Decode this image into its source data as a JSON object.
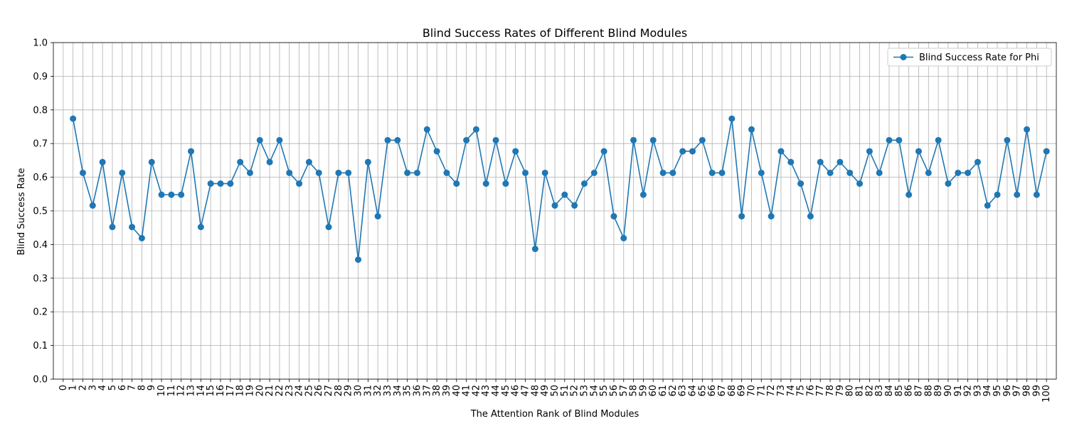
{
  "chart_data": {
    "type": "line",
    "title": "Blind Success Rates of Different Blind Modules",
    "xlabel": "The Attention Rank of Blind Modules",
    "ylabel": "Blind Success Rate",
    "xlim": [
      -1,
      101
    ],
    "ylim": [
      0.0,
      1.0
    ],
    "xticks": [
      0,
      1,
      2,
      3,
      4,
      5,
      6,
      7,
      8,
      9,
      10,
      11,
      12,
      13,
      14,
      15,
      16,
      17,
      18,
      19,
      20,
      21,
      22,
      23,
      24,
      25,
      26,
      27,
      28,
      29,
      30,
      31,
      32,
      33,
      34,
      35,
      36,
      37,
      38,
      39,
      40,
      41,
      42,
      43,
      44,
      45,
      46,
      47,
      48,
      49,
      50,
      51,
      52,
      53,
      54,
      55,
      56,
      57,
      58,
      59,
      60,
      61,
      62,
      63,
      64,
      65,
      66,
      67,
      68,
      69,
      70,
      71,
      72,
      73,
      74,
      75,
      76,
      77,
      78,
      79,
      80,
      81,
      82,
      83,
      84,
      85,
      86,
      87,
      88,
      89,
      90,
      91,
      92,
      93,
      94,
      95,
      96,
      97,
      98,
      99,
      100
    ],
    "yticks": [
      "0.0",
      "0.1",
      "0.2",
      "0.3",
      "0.4",
      "0.5",
      "0.6",
      "0.7",
      "0.8",
      "0.9",
      "1.0"
    ],
    "grid": true,
    "legend_position": "top-right",
    "color": "#1f77b4",
    "series": [
      {
        "name": "Blind Success Rate for Phi",
        "x": [
          1,
          2,
          3,
          4,
          5,
          6,
          7,
          8,
          9,
          10,
          11,
          12,
          13,
          14,
          15,
          16,
          17,
          18,
          19,
          20,
          21,
          22,
          23,
          24,
          25,
          26,
          27,
          28,
          29,
          30,
          31,
          32,
          33,
          34,
          35,
          36,
          37,
          38,
          39,
          40,
          41,
          42,
          43,
          44,
          45,
          46,
          47,
          48,
          49,
          50,
          51,
          52,
          53,
          54,
          55,
          56,
          57,
          58,
          59,
          60,
          61,
          62,
          63,
          64,
          65,
          66,
          67,
          68,
          69,
          70,
          71,
          72,
          73,
          74,
          75,
          76,
          77,
          78,
          79,
          80,
          81,
          82,
          83,
          84,
          85,
          86,
          87,
          88,
          89,
          90,
          91,
          92,
          93,
          94,
          95,
          96,
          97,
          98,
          99,
          100
        ],
        "values": [
          0.774,
          0.613,
          0.516,
          0.645,
          0.452,
          0.613,
          0.452,
          0.419,
          0.645,
          0.548,
          0.548,
          0.548,
          0.677,
          0.452,
          0.581,
          0.581,
          0.581,
          0.645,
          0.613,
          0.71,
          0.645,
          0.71,
          0.613,
          0.581,
          0.645,
          0.613,
          0.452,
          0.613,
          0.613,
          0.355,
          0.645,
          0.484,
          0.71,
          0.71,
          0.613,
          0.613,
          0.742,
          0.677,
          0.613,
          0.581,
          0.71,
          0.742,
          0.581,
          0.71,
          0.581,
          0.677,
          0.613,
          0.387,
          0.613,
          0.516,
          0.548,
          0.516,
          0.581,
          0.613,
          0.677,
          0.484,
          0.419,
          0.71,
          0.548,
          0.71,
          0.613,
          0.613,
          0.677,
          0.677,
          0.71,
          0.613,
          0.613,
          0.774,
          0.484,
          0.742,
          0.613,
          0.484,
          0.677,
          0.645,
          0.581,
          0.484,
          0.645,
          0.613,
          0.645,
          0.613,
          0.581,
          0.677,
          0.613,
          0.71,
          0.71,
          0.548,
          0.677,
          0.613,
          0.71,
          0.581,
          0.613,
          0.613,
          0.645,
          0.516,
          0.548,
          0.71,
          0.548,
          0.742,
          0.548,
          0.677
        ]
      }
    ]
  }
}
